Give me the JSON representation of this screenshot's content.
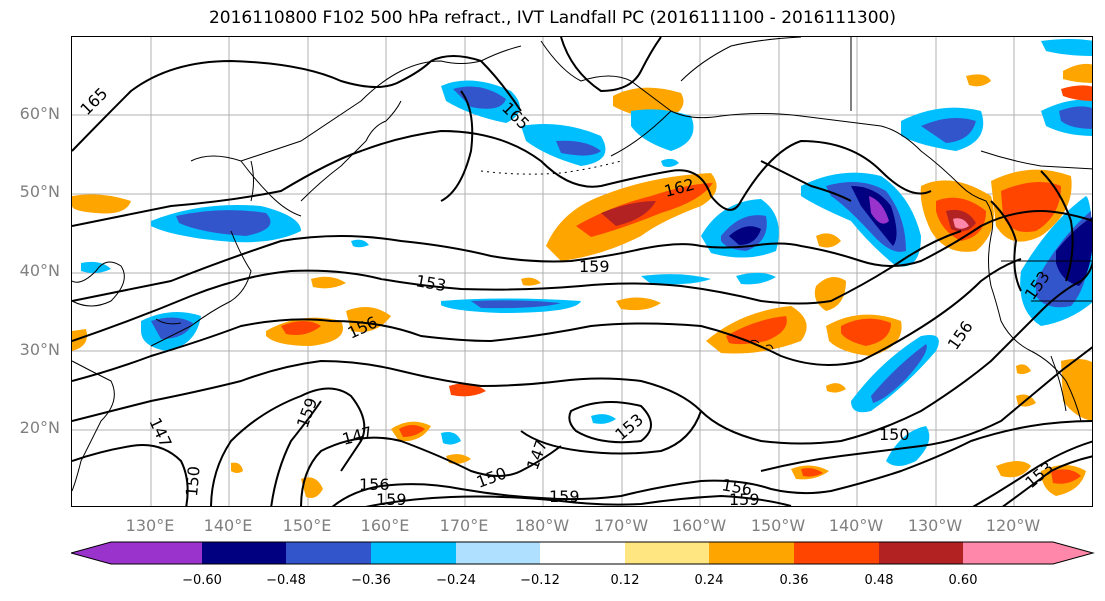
{
  "title": "2016110800 F102 500 hPa refract., IVT Landfall PC (2016111100 - 2016111300)",
  "lat_labels": [
    "60°N",
    "50°N",
    "40°N",
    "30°N",
    "20°N"
  ],
  "lon_labels": [
    "130°E",
    "140°E",
    "150°E",
    "160°E",
    "170°E",
    "180°W",
    "170°W",
    "160°W",
    "150°W",
    "140°W",
    "130°W",
    "120°W"
  ],
  "contour_labels": [
    {
      "id": "165a",
      "text": "165"
    },
    {
      "id": "165b",
      "text": "165"
    },
    {
      "id": "162",
      "text": "162"
    },
    {
      "id": "159a",
      "text": "159"
    },
    {
      "id": "153a",
      "text": "153"
    },
    {
      "id": "156a",
      "text": "156"
    },
    {
      "id": "153b",
      "text": "153"
    },
    {
      "id": "156b",
      "text": "156"
    },
    {
      "id": "159b",
      "text": "159"
    },
    {
      "id": "147a",
      "text": "147"
    },
    {
      "id": "147b",
      "text": "147"
    },
    {
      "id": "150a",
      "text": "150"
    },
    {
      "id": "150b",
      "text": "150"
    },
    {
      "id": "147c",
      "text": "147"
    },
    {
      "id": "153c",
      "text": "153"
    },
    {
      "id": "150c",
      "text": "150"
    },
    {
      "id": "156c",
      "text": "156"
    },
    {
      "id": "159c",
      "text": "159"
    },
    {
      "id": "159d",
      "text": "159"
    },
    {
      "id": "156d",
      "text": "156"
    },
    {
      "id": "159e",
      "text": "159"
    },
    {
      "id": "153d",
      "text": "153"
    }
  ],
  "colorbar": {
    "colors": [
      "#9933cc",
      "#000080",
      "#3355cc",
      "#00bfff",
      "#b0e0ff",
      "#ffffff",
      "#ffe680",
      "#ffa500",
      "#ff4500",
      "#b22222",
      "#ff88aa"
    ],
    "tick_labels": [
      "−0.60",
      "−0.48",
      "−0.36",
      "−0.24",
      "−0.12",
      "0.12",
      "0.24",
      "0.36",
      "0.48",
      "0.60"
    ]
  }
}
